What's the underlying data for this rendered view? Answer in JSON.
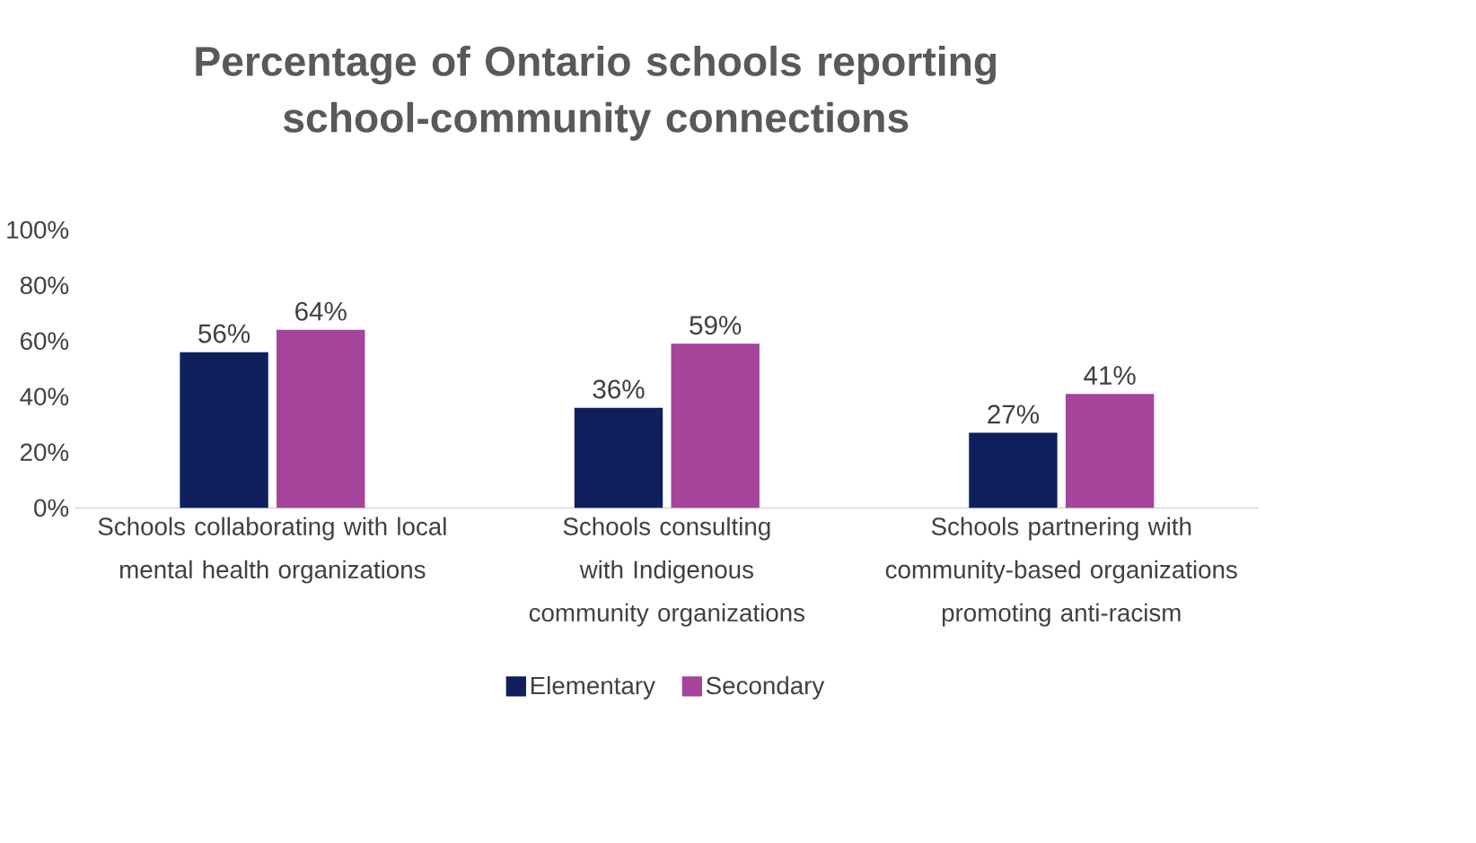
{
  "chart_data": {
    "type": "bar",
    "title": "Percentage of Ontario schools reporting school-community connections",
    "categories": [
      "Schools collaborating with local mental health organizations",
      "Schools consulting with Indigenous community organizations",
      "Schools partnering with community-based organizations promoting anti-racism"
    ],
    "series": [
      {
        "name": "Elementary",
        "color": "#0e1f5b",
        "values": [
          56,
          36,
          27
        ],
        "value_labels": [
          "56%",
          "36%",
          "27%"
        ]
      },
      {
        "name": "Secondary",
        "color": "#a4449b",
        "values": [
          64,
          59,
          41
        ],
        "value_labels": [
          "64%",
          "59%",
          "41%"
        ]
      }
    ],
    "ylim": [
      0,
      100
    ],
    "yticks": [
      {
        "value": 0,
        "label": "0%"
      },
      {
        "value": 20,
        "label": "20%"
      },
      {
        "value": 40,
        "label": "40%"
      },
      {
        "value": 60,
        "label": "60%"
      },
      {
        "value": 80,
        "label": "80%"
      },
      {
        "value": 100,
        "label": "100%"
      }
    ],
    "grid": false,
    "legend": "bottom"
  }
}
